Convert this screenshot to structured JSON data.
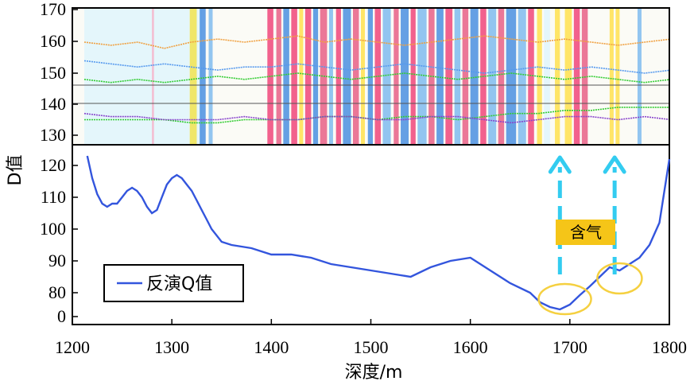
{
  "chart_data": {
    "type": "line",
    "xlabel": "深度/m",
    "ylabel": "D值",
    "xlim": [
      1200,
      1800
    ],
    "x_ticks": [
      "1200",
      "1300",
      "1400",
      "1500",
      "1600",
      "1700",
      "1800"
    ],
    "y_ticks": [
      "0",
      "80",
      "90",
      "100",
      "110",
      "120",
      "130",
      "140",
      "150",
      "160",
      "170"
    ],
    "legend": {
      "position": "bottom-left",
      "entries": [
        "反演Q值"
      ]
    },
    "annotation": {
      "text": "含气",
      "arrow_depths": [
        1690,
        1745
      ],
      "circled_depths": [
        1695,
        1750
      ]
    },
    "series": [
      {
        "name": "反演Q值",
        "color": "#3355dd",
        "x": [
          1215,
          1220,
          1225,
          1230,
          1235,
          1240,
          1245,
          1250,
          1255,
          1260,
          1265,
          1270,
          1275,
          1280,
          1285,
          1290,
          1295,
          1300,
          1305,
          1310,
          1315,
          1320,
          1325,
          1330,
          1335,
          1340,
          1350,
          1360,
          1380,
          1400,
          1420,
          1440,
          1460,
          1480,
          1500,
          1520,
          1540,
          1560,
          1580,
          1600,
          1620,
          1640,
          1660,
          1670,
          1680,
          1690,
          1700,
          1710,
          1720,
          1730,
          1740,
          1750,
          1760,
          1770,
          1780,
          1790,
          1800
        ],
        "y": [
          123,
          116,
          111,
          108,
          107,
          108,
          108,
          110,
          112,
          113,
          112,
          110,
          107,
          105,
          106,
          110,
          114,
          116,
          117,
          116,
          114,
          112,
          109,
          106,
          103,
          100,
          96,
          95,
          94,
          92,
          92,
          91,
          89,
          88,
          87,
          86,
          85,
          88,
          90,
          91,
          87,
          83,
          80,
          76,
          74,
          73,
          75,
          79,
          82,
          85,
          88,
          87,
          89,
          91,
          95,
          102,
          122
        ]
      }
    ],
    "log_panel": {
      "y_range": [
        127,
        170
      ],
      "traces": [
        {
          "name": "orange",
          "color": "#f0a040",
          "values": [
            160,
            159,
            160,
            158,
            160,
            161,
            160,
            161,
            162,
            160,
            161,
            160,
            159,
            160,
            161,
            162,
            161,
            160,
            161,
            160,
            159,
            160,
            161
          ]
        },
        {
          "name": "blue",
          "color": "#5599ee",
          "values": [
            154,
            153,
            152,
            153,
            152,
            151,
            152,
            152,
            153,
            152,
            151,
            152,
            153,
            152,
            151,
            150,
            151,
            152,
            151,
            152,
            151,
            150,
            151
          ]
        },
        {
          "name": "green",
          "color": "#33cc33",
          "values": [
            148,
            147,
            148,
            147,
            148,
            149,
            148,
            149,
            150,
            149,
            148,
            149,
            150,
            149,
            148,
            149,
            150,
            149,
            148,
            149,
            148,
            147,
            148
          ]
        },
        {
          "name": "green-lower",
          "color": "#33cc33",
          "values": [
            135,
            135,
            135,
            135,
            134,
            134,
            135,
            135,
            135,
            136,
            136,
            135,
            136,
            136,
            135,
            136,
            137,
            137,
            138,
            138,
            139,
            139,
            139
          ]
        },
        {
          "name": "purple",
          "color": "#8844cc",
          "values": [
            137,
            136,
            136,
            135,
            135,
            135,
            136,
            135,
            135,
            136,
            136,
            135,
            135,
            136,
            136,
            135,
            134,
            135,
            136,
            136,
            135,
            136,
            135
          ]
        }
      ],
      "bands": [
        {
          "from": 1212,
          "to": 1330,
          "color": "#dff4fb"
        },
        {
          "from": 1280,
          "to": 1282,
          "color": "#f7b2c8"
        },
        {
          "from": 1318,
          "to": 1325,
          "color": "#f2e34f"
        },
        {
          "from": 1328,
          "to": 1334,
          "color": "#4a8fe0"
        },
        {
          "from": 1337,
          "to": 1341,
          "color": "#7fbbee"
        },
        {
          "from": 1396,
          "to": 1402,
          "color": "#f0457a"
        },
        {
          "from": 1405,
          "to": 1410,
          "color": "#e75f86"
        },
        {
          "from": 1412,
          "to": 1418,
          "color": "#4a8fe0"
        },
        {
          "from": 1420,
          "to": 1426,
          "color": "#f0457a"
        },
        {
          "from": 1428,
          "to": 1432,
          "color": "#ffe14d"
        },
        {
          "from": 1434,
          "to": 1440,
          "color": "#f0457a"
        },
        {
          "from": 1442,
          "to": 1447,
          "color": "#4a8fe0"
        },
        {
          "from": 1449,
          "to": 1456,
          "color": "#e75f86"
        },
        {
          "from": 1458,
          "to": 1462,
          "color": "#7fbbee"
        },
        {
          "from": 1465,
          "to": 1470,
          "color": "#f0457a"
        },
        {
          "from": 1472,
          "to": 1480,
          "color": "#4a8fe0"
        },
        {
          "from": 1482,
          "to": 1488,
          "color": "#e75f86"
        },
        {
          "from": 1490,
          "to": 1494,
          "color": "#ffe14d"
        },
        {
          "from": 1497,
          "to": 1502,
          "color": "#4a8fe0"
        },
        {
          "from": 1504,
          "to": 1510,
          "color": "#f0457a"
        },
        {
          "from": 1512,
          "to": 1520,
          "color": "#7fbbee"
        },
        {
          "from": 1523,
          "to": 1528,
          "color": "#e75f86"
        },
        {
          "from": 1530,
          "to": 1538,
          "color": "#4a8fe0"
        },
        {
          "from": 1540,
          "to": 1545,
          "color": "#f0457a"
        },
        {
          "from": 1547,
          "to": 1556,
          "color": "#7fbbee"
        },
        {
          "from": 1558,
          "to": 1564,
          "color": "#e75f86"
        },
        {
          "from": 1566,
          "to": 1573,
          "color": "#4a8fe0"
        },
        {
          "from": 1575,
          "to": 1582,
          "color": "#f0457a"
        },
        {
          "from": 1584,
          "to": 1590,
          "color": "#7fbbee"
        },
        {
          "from": 1592,
          "to": 1598,
          "color": "#e75f86"
        },
        {
          "from": 1600,
          "to": 1608,
          "color": "#4a8fe0"
        },
        {
          "from": 1610,
          "to": 1616,
          "color": "#f0457a"
        },
        {
          "from": 1618,
          "to": 1626,
          "color": "#7fbbee"
        },
        {
          "from": 1628,
          "to": 1634,
          "color": "#e75f86"
        },
        {
          "from": 1636,
          "to": 1646,
          "color": "#4a8fe0"
        },
        {
          "from": 1648,
          "to": 1656,
          "color": "#7fbbee"
        },
        {
          "from": 1658,
          "to": 1664,
          "color": "#f0457a"
        },
        {
          "from": 1667,
          "to": 1672,
          "color": "#ffe14d"
        },
        {
          "from": 1674,
          "to": 1680,
          "color": "#dff4fb"
        },
        {
          "from": 1685,
          "to": 1690,
          "color": "#ffe14d"
        },
        {
          "from": 1695,
          "to": 1702,
          "color": "#ffe14d"
        },
        {
          "from": 1704,
          "to": 1710,
          "color": "#f0457a"
        },
        {
          "from": 1712,
          "to": 1718,
          "color": "#e75f86"
        },
        {
          "from": 1740,
          "to": 1744,
          "color": "#ffe14d"
        },
        {
          "from": 1746,
          "to": 1750,
          "color": "#ffe14d"
        },
        {
          "from": 1768,
          "to": 1772,
          "color": "#7fbbee"
        },
        {
          "from": 1800,
          "to": 1802,
          "color": "#f7b2c8"
        }
      ]
    }
  }
}
